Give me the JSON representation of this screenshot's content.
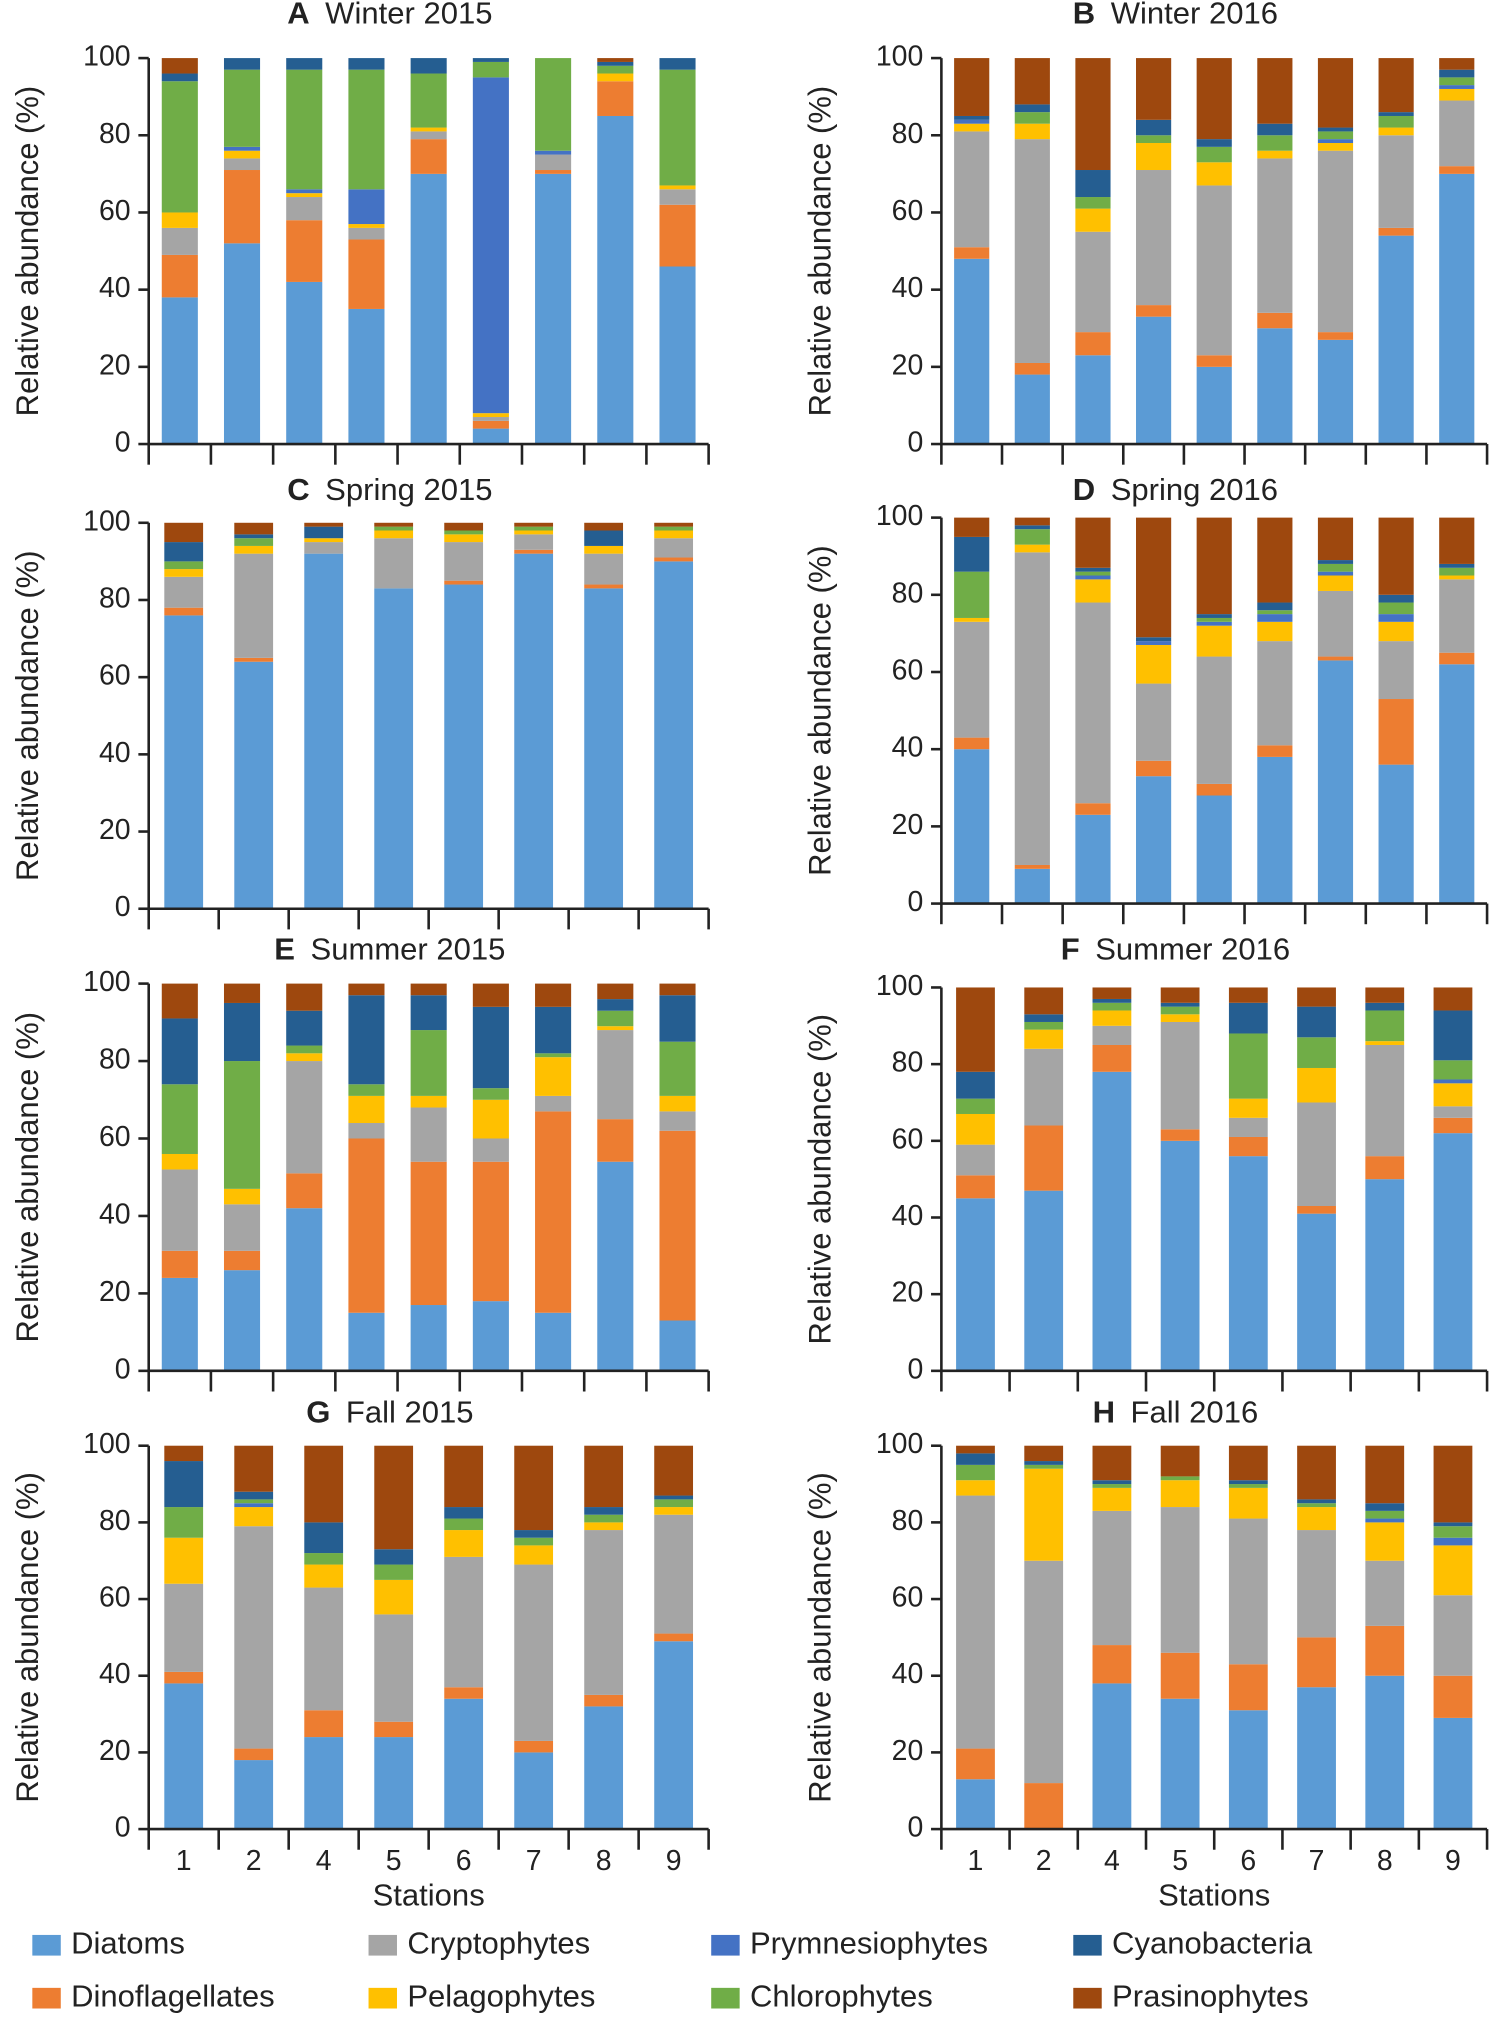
{
  "chart_data": [
    {
      "type": "bar",
      "panel": "A",
      "title": "Winter 2015",
      "ylabel": "Relative abundance (%)",
      "categories": [
        null,
        null,
        null,
        null,
        null,
        null,
        null,
        null,
        null
      ],
      "ylim": [
        0,
        100
      ],
      "yticks": [
        0,
        20,
        40,
        60,
        80,
        100
      ],
      "stacked": true,
      "series": [
        {
          "values": [
            38,
            52,
            42,
            35,
            70,
            4,
            70,
            85,
            46
          ]
        },
        {
          "values": [
            11,
            19,
            16,
            18,
            9,
            2,
            1,
            9,
            16
          ]
        },
        {
          "values": [
            7,
            3,
            6,
            3,
            2,
            1,
            4,
            0,
            4
          ]
        },
        {
          "values": [
            4,
            2,
            1,
            1,
            1,
            1,
            0,
            2,
            1
          ]
        },
        {
          "values": [
            0,
            1,
            1,
            9,
            0,
            87,
            1,
            0,
            0
          ]
        },
        {
          "values": [
            34,
            20,
            31,
            31,
            14,
            4,
            24,
            2,
            30
          ]
        },
        {
          "values": [
            2,
            3,
            3,
            3,
            4,
            1,
            0,
            1,
            3
          ]
        },
        {
          "values": [
            4,
            0,
            0,
            0,
            0,
            0,
            0,
            1,
            0
          ]
        }
      ]
    },
    {
      "type": "bar",
      "panel": "B",
      "title": "Winter 2016",
      "ylabel": "Relative abundance (%)",
      "categories": [
        null,
        null,
        null,
        null,
        null,
        null,
        null,
        null,
        null
      ],
      "ylim": [
        0,
        100
      ],
      "yticks": [
        0,
        20,
        40,
        60,
        80,
        100
      ],
      "stacked": true,
      "series": [
        {
          "values": [
            48,
            18,
            23,
            33,
            20,
            30,
            27,
            54,
            70
          ]
        },
        {
          "values": [
            3,
            3,
            6,
            3,
            3,
            4,
            2,
            2,
            2
          ]
        },
        {
          "values": [
            30,
            58,
            26,
            35,
            44,
            40,
            47,
            24,
            17
          ]
        },
        {
          "values": [
            2,
            4,
            6,
            7,
            6,
            2,
            2,
            2,
            3
          ]
        },
        {
          "values": [
            1,
            0,
            0,
            0,
            0,
            0,
            1,
            0,
            1
          ]
        },
        {
          "values": [
            0,
            3,
            3,
            2,
            4,
            4,
            2,
            3,
            2
          ]
        },
        {
          "values": [
            1,
            2,
            7,
            4,
            2,
            3,
            1,
            1,
            2
          ]
        },
        {
          "values": [
            15,
            12,
            29,
            16,
            21,
            17,
            18,
            14,
            3
          ]
        }
      ]
    },
    {
      "type": "bar",
      "panel": "C",
      "title": "Spring 2015",
      "ylabel": "Relative abundance (%)",
      "categories": [
        null,
        null,
        null,
        null,
        null,
        null,
        null,
        null
      ],
      "ylim": [
        0,
        100
      ],
      "yticks": [
        0,
        20,
        40,
        60,
        80,
        100
      ],
      "stacked": true,
      "series": [
        {
          "values": [
            76,
            64,
            92,
            83,
            84,
            92,
            83,
            90
          ]
        },
        {
          "values": [
            2,
            1,
            0,
            0,
            1,
            1,
            1,
            1
          ]
        },
        {
          "values": [
            8,
            27,
            3,
            13,
            10,
            4,
            8,
            5
          ]
        },
        {
          "values": [
            2,
            2,
            1,
            2,
            2,
            1,
            2,
            2
          ]
        },
        {
          "values": [
            0,
            0,
            0,
            0,
            0,
            0,
            0,
            0
          ]
        },
        {
          "values": [
            2,
            2,
            0,
            1,
            1,
            1,
            0,
            1
          ]
        },
        {
          "values": [
            5,
            1,
            3,
            0,
            0,
            0,
            4,
            0
          ]
        },
        {
          "values": [
            5,
            3,
            1,
            1,
            2,
            1,
            2,
            1
          ]
        }
      ]
    },
    {
      "type": "bar",
      "panel": "D",
      "title": "Spring 2016",
      "ylabel": "Relative abundance (%)",
      "categories": [
        null,
        null,
        null,
        null,
        null,
        null,
        null,
        null,
        null
      ],
      "ylim": [
        0,
        100
      ],
      "yticks": [
        0,
        20,
        40,
        60,
        80,
        100
      ],
      "stacked": true,
      "series": [
        {
          "values": [
            40,
            9,
            23,
            33,
            28,
            38,
            63,
            36,
            62
          ]
        },
        {
          "values": [
            3,
            1,
            3,
            4,
            3,
            3,
            1,
            17,
            3
          ]
        },
        {
          "values": [
            30,
            81,
            52,
            20,
            33,
            27,
            17,
            15,
            19
          ]
        },
        {
          "values": [
            1,
            2,
            6,
            10,
            8,
            5,
            4,
            5,
            1
          ]
        },
        {
          "values": [
            0,
            0,
            1,
            1,
            1,
            2,
            1,
            2,
            0
          ]
        },
        {
          "values": [
            12,
            4,
            1,
            0,
            1,
            1,
            2,
            3,
            2
          ]
        },
        {
          "values": [
            9,
            1,
            1,
            1,
            1,
            2,
            1,
            2,
            1
          ]
        },
        {
          "values": [
            5,
            2,
            13,
            31,
            25,
            22,
            11,
            20,
            12
          ]
        }
      ]
    },
    {
      "type": "bar",
      "panel": "E",
      "title": "Summer 2015",
      "ylabel": "Relative abundance (%)",
      "categories": [
        null,
        null,
        null,
        null,
        null,
        null,
        null,
        null,
        null
      ],
      "ylim": [
        0,
        100
      ],
      "yticks": [
        0,
        20,
        40,
        60,
        80,
        100
      ],
      "stacked": true,
      "series": [
        {
          "values": [
            24,
            26,
            42,
            15,
            17,
            18,
            15,
            54,
            13
          ]
        },
        {
          "values": [
            7,
            5,
            9,
            45,
            37,
            36,
            52,
            11,
            49
          ]
        },
        {
          "values": [
            21,
            12,
            29,
            4,
            14,
            6,
            4,
            23,
            5
          ]
        },
        {
          "values": [
            4,
            4,
            2,
            7,
            3,
            10,
            10,
            1,
            4
          ]
        },
        {
          "values": [
            0,
            0,
            0,
            0,
            0,
            0,
            0,
            0,
            0
          ]
        },
        {
          "values": [
            18,
            33,
            2,
            3,
            17,
            3,
            1,
            4,
            14
          ]
        },
        {
          "values": [
            17,
            15,
            9,
            23,
            9,
            21,
            12,
            3,
            12
          ]
        },
        {
          "values": [
            9,
            5,
            7,
            3,
            3,
            6,
            6,
            4,
            3
          ]
        }
      ]
    },
    {
      "type": "bar",
      "panel": "F",
      "title": "Summer 2016",
      "ylabel": "Relative abundance (%)",
      "categories": [
        null,
        null,
        null,
        null,
        null,
        null,
        null,
        null
      ],
      "ylim": [
        0,
        100
      ],
      "yticks": [
        0,
        20,
        40,
        60,
        80,
        100
      ],
      "stacked": true,
      "series": [
        {
          "values": [
            45,
            47,
            78,
            60,
            56,
            41,
            50,
            62
          ]
        },
        {
          "values": [
            6,
            17,
            7,
            3,
            5,
            2,
            6,
            4
          ]
        },
        {
          "values": [
            8,
            20,
            5,
            28,
            5,
            27,
            29,
            3
          ]
        },
        {
          "values": [
            8,
            5,
            4,
            2,
            5,
            9,
            1,
            6
          ]
        },
        {
          "values": [
            0,
            0,
            0,
            0,
            0,
            0,
            0,
            1
          ]
        },
        {
          "values": [
            4,
            2,
            2,
            2,
            17,
            8,
            8,
            5
          ]
        },
        {
          "values": [
            7,
            2,
            1,
            1,
            8,
            8,
            2,
            13
          ]
        },
        {
          "values": [
            22,
            7,
            3,
            4,
            4,
            5,
            4,
            6
          ]
        }
      ]
    },
    {
      "type": "bar",
      "panel": "G",
      "title": "Fall 2015",
      "ylabel": "Relative abundance (%)",
      "xlabel": "Stations",
      "categories": [
        "1",
        "2",
        "4",
        "5",
        "6",
        "7",
        "8",
        "9"
      ],
      "ylim": [
        0,
        100
      ],
      "yticks": [
        0,
        20,
        40,
        60,
        80,
        100
      ],
      "stacked": true,
      "series": [
        {
          "values": [
            38,
            18,
            24,
            24,
            34,
            20,
            32,
            49
          ]
        },
        {
          "values": [
            3,
            3,
            7,
            4,
            3,
            3,
            3,
            2
          ]
        },
        {
          "values": [
            23,
            58,
            32,
            28,
            34,
            46,
            43,
            31
          ]
        },
        {
          "values": [
            12,
            5,
            6,
            9,
            7,
            5,
            2,
            2
          ]
        },
        {
          "values": [
            0,
            1,
            0,
            0,
            0,
            0,
            0,
            0
          ]
        },
        {
          "values": [
            8,
            1,
            3,
            4,
            3,
            2,
            2,
            2
          ]
        },
        {
          "values": [
            12,
            2,
            8,
            4,
            3,
            2,
            2,
            1
          ]
        },
        {
          "values": [
            4,
            12,
            20,
            27,
            16,
            22,
            16,
            13
          ]
        }
      ]
    },
    {
      "type": "bar",
      "panel": "H",
      "title": "Fall 2016",
      "ylabel": "Relative abundance (%)",
      "xlabel": "Stations",
      "categories": [
        "1",
        "2",
        "4",
        "5",
        "6",
        "7",
        "8",
        "9"
      ],
      "ylim": [
        0,
        100
      ],
      "yticks": [
        0,
        20,
        40,
        60,
        80,
        100
      ],
      "stacked": true,
      "series": [
        {
          "values": [
            13,
            0,
            38,
            34,
            31,
            37,
            40,
            29
          ]
        },
        {
          "values": [
            8,
            12,
            10,
            12,
            12,
            13,
            13,
            11
          ]
        },
        {
          "values": [
            66,
            58,
            35,
            38,
            38,
            28,
            17,
            21
          ]
        },
        {
          "values": [
            4,
            24,
            6,
            7,
            8,
            6,
            10,
            13
          ]
        },
        {
          "values": [
            0,
            0,
            0,
            0,
            0,
            0,
            1,
            2
          ]
        },
        {
          "values": [
            4,
            1,
            1,
            1,
            1,
            1,
            2,
            3
          ]
        },
        {
          "values": [
            3,
            1,
            1,
            0,
            1,
            1,
            2,
            1
          ]
        },
        {
          "values": [
            2,
            4,
            9,
            8,
            9,
            14,
            15,
            20
          ]
        }
      ]
    }
  ],
  "legend": [
    {
      "name": "Diatoms",
      "color": "#5b9bd5"
    },
    {
      "name": "Dinoflagellates",
      "color": "#ed7d31"
    },
    {
      "name": "Cryptophytes",
      "color": "#a5a5a5"
    },
    {
      "name": "Pelagophytes",
      "color": "#ffc000"
    },
    {
      "name": "Prymnesiophytes",
      "color": "#4472c4"
    },
    {
      "name": "Chlorophytes",
      "color": "#70ad47"
    },
    {
      "name": "Cyanobacteria",
      "color": "#255e91"
    },
    {
      "name": "Prasinophytes",
      "color": "#9e480e"
    }
  ]
}
